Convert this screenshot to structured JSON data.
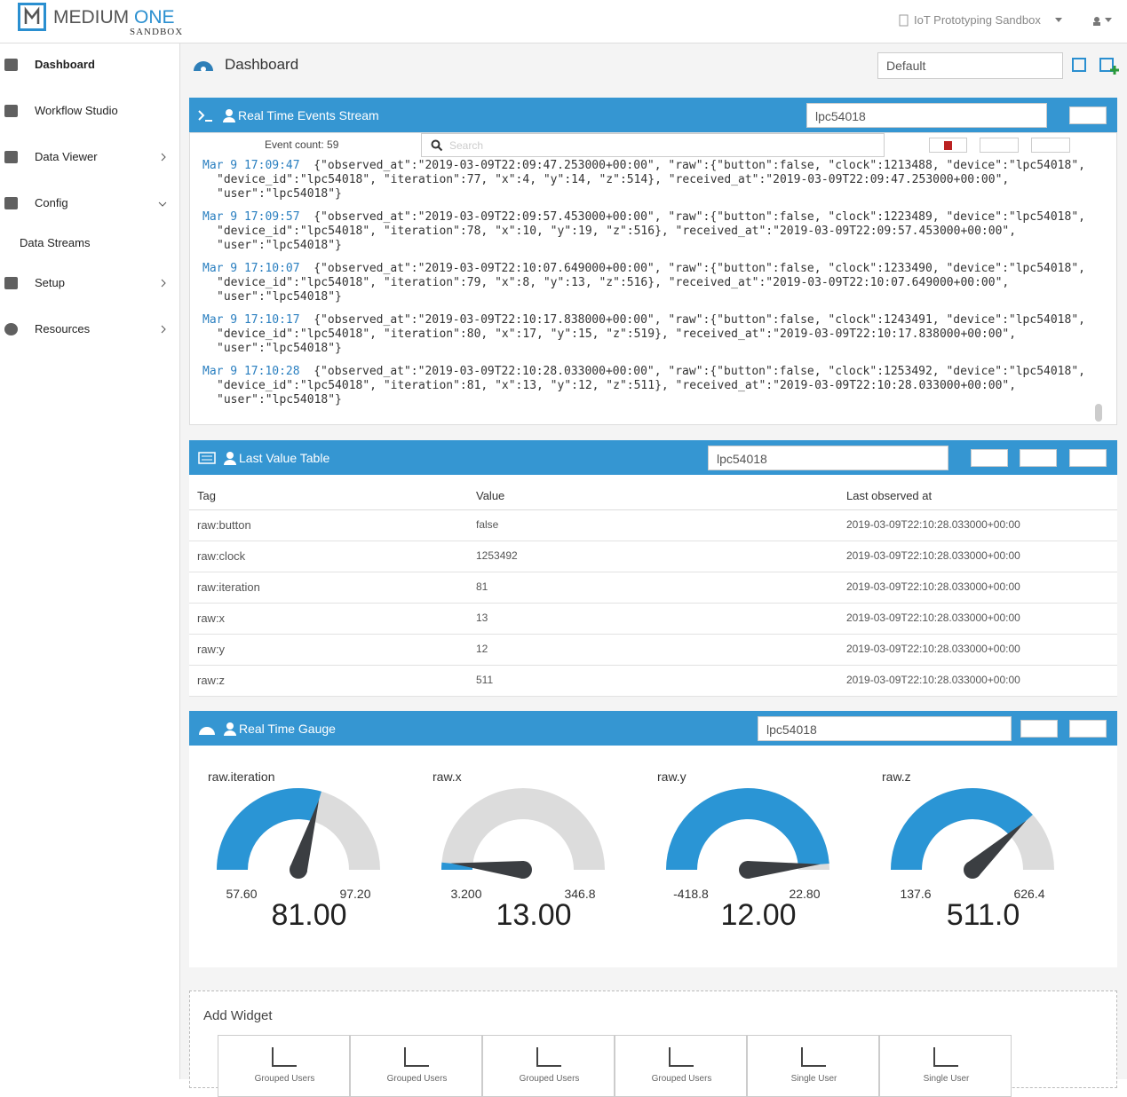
{
  "header": {
    "brand": "MEDIUM",
    "brand_accent": "ONE",
    "brand_sub": "SANDBOX",
    "project": "IoT Prototyping Sandbox"
  },
  "sidebar": {
    "items": [
      "Dashboard",
      "Workflow Studio",
      "Data Viewer",
      "Config",
      "Data Streams",
      "Setup",
      "Resources"
    ]
  },
  "page": {
    "title": "Dashboard",
    "view": "Default"
  },
  "events_widget": {
    "title": "Real Time Events Stream",
    "device": "lpc54018",
    "event_count": "Event count: 59",
    "search_placeholder": "Search",
    "events": [
      {
        "time": "Mar 9 17:09:47",
        "lines": [
          "{\"observed_at\":\"2019-03-09T22:09:47.253000+00:00\", \"raw\":{\"button\":false, \"clock\":1213488, \"device\":\"lpc54018\",",
          "\"device_id\":\"lpc54018\", \"iteration\":77, \"x\":4, \"y\":14, \"z\":514}, \"received_at\":\"2019-03-09T22:09:47.253000+00:00\",",
          "\"user\":\"lpc54018\"}"
        ]
      },
      {
        "time": "Mar 9 17:09:57",
        "lines": [
          "{\"observed_at\":\"2019-03-09T22:09:57.453000+00:00\", \"raw\":{\"button\":false, \"clock\":1223489, \"device\":\"lpc54018\",",
          "\"device_id\":\"lpc54018\", \"iteration\":78, \"x\":10, \"y\":19, \"z\":516}, \"received_at\":\"2019-03-09T22:09:57.453000+00:00\",",
          "\"user\":\"lpc54018\"}"
        ]
      },
      {
        "time": "Mar 9 17:10:07",
        "lines": [
          "{\"observed_at\":\"2019-03-09T22:10:07.649000+00:00\", \"raw\":{\"button\":false, \"clock\":1233490, \"device\":\"lpc54018\",",
          "\"device_id\":\"lpc54018\", \"iteration\":79, \"x\":8, \"y\":13, \"z\":516}, \"received_at\":\"2019-03-09T22:10:07.649000+00:00\",",
          "\"user\":\"lpc54018\"}"
        ]
      },
      {
        "time": "Mar 9 17:10:17",
        "lines": [
          "{\"observed_at\":\"2019-03-09T22:10:17.838000+00:00\", \"raw\":{\"button\":false, \"clock\":1243491, \"device\":\"lpc54018\",",
          "\"device_id\":\"lpc54018\", \"iteration\":80, \"x\":17, \"y\":15, \"z\":519}, \"received_at\":\"2019-03-09T22:10:17.838000+00:00\",",
          "\"user\":\"lpc54018\"}"
        ]
      },
      {
        "time": "Mar 9 17:10:28",
        "lines": [
          "{\"observed_at\":\"2019-03-09T22:10:28.033000+00:00\", \"raw\":{\"button\":false, \"clock\":1253492, \"device\":\"lpc54018\",",
          "\"device_id\":\"lpc54018\", \"iteration\":81, \"x\":13, \"y\":12, \"z\":511}, \"received_at\":\"2019-03-09T22:10:28.033000+00:00\",",
          "\"user\":\"lpc54018\"}"
        ]
      }
    ]
  },
  "table_widget": {
    "title": "Last Value Table",
    "device": "lpc54018",
    "columns": [
      "Tag",
      "Value",
      "Last observed at"
    ],
    "rows": [
      [
        "raw:button",
        "false",
        "2019-03-09T22:10:28.033000+00:00"
      ],
      [
        "raw:clock",
        "1253492",
        "2019-03-09T22:10:28.033000+00:00"
      ],
      [
        "raw:iteration",
        "81",
        "2019-03-09T22:10:28.033000+00:00"
      ],
      [
        "raw:x",
        "13",
        "2019-03-09T22:10:28.033000+00:00"
      ],
      [
        "raw:y",
        "12",
        "2019-03-09T22:10:28.033000+00:00"
      ],
      [
        "raw:z",
        "511",
        "2019-03-09T22:10:28.033000+00:00"
      ]
    ]
  },
  "gauge_widget": {
    "title": "Real Time Gauge",
    "device": "lpc54018",
    "gauges": [
      {
        "name": "raw.iteration",
        "min": {
          "value": 57.6,
          "label": "57.60"
        },
        "max": {
          "value": 97.2,
          "label": "97.20"
        },
        "value": {
          "value": 81,
          "label": "81.00"
        }
      },
      {
        "name": "raw.x",
        "min": {
          "value": 3.2,
          "label": "3.200"
        },
        "max": {
          "value": 346.8,
          "label": "346.8"
        },
        "value": {
          "value": 13,
          "label": "13.00"
        }
      },
      {
        "name": "raw.y",
        "min": {
          "value": -418.8,
          "label": "-418.8"
        },
        "max": {
          "value": 22.8,
          "label": "22.80"
        },
        "value": {
          "value": 12,
          "label": "12.00"
        }
      },
      {
        "name": "raw.z",
        "min": {
          "value": 137.6,
          "label": "137.6"
        },
        "max": {
          "value": 626.4,
          "label": "626.4"
        },
        "value": {
          "value": 511,
          "label": "511.0"
        }
      }
    ]
  },
  "add_widget": {
    "title": "Add Widget",
    "options": [
      "Grouped Users",
      "Grouped Users",
      "Grouped Users",
      "Grouped Users",
      "Single User",
      "Single User"
    ]
  }
}
